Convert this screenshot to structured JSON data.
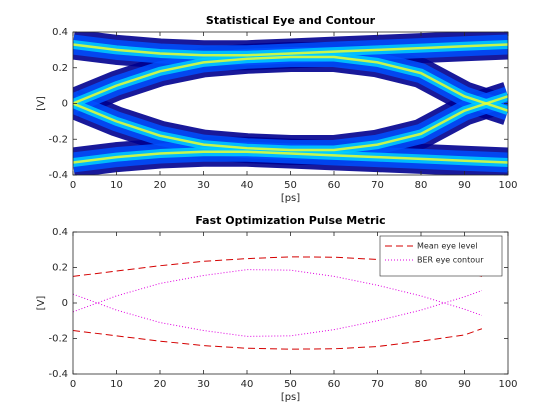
{
  "chart_data": [
    {
      "type": "eye",
      "title": "Statistical Eye and Contour",
      "xlabel": "[ps]",
      "ylabel": "[V]",
      "x": [
        0,
        10,
        20,
        30,
        40,
        50,
        60,
        70,
        80,
        90,
        100
      ],
      "colors": [
        "#00008f",
        "#0050ff",
        "#00d0ff",
        "#e8ff30"
      ],
      "series": [
        {
          "values": [
            0,
            0.1,
            0.18,
            0.23,
            0.25,
            0.26,
            0.26,
            0.23,
            0.17,
            0.04,
            -0.04
          ]
        },
        {
          "values": [
            0,
            -0.1,
            -0.18,
            -0.23,
            -0.25,
            -0.26,
            -0.26,
            -0.23,
            -0.17,
            -0.04,
            0.04
          ]
        },
        {
          "values": [
            0.33,
            0.3,
            0.28,
            0.27,
            0.27,
            0.28,
            0.29,
            0.3,
            0.31,
            0.32,
            0.33
          ]
        },
        {
          "values": [
            -0.33,
            -0.3,
            -0.28,
            -0.27,
            -0.27,
            -0.28,
            -0.29,
            -0.3,
            -0.31,
            -0.32,
            -0.33
          ]
        }
      ],
      "xlim": [
        0,
        100
      ],
      "xticks": [
        0,
        10,
        20,
        30,
        40,
        50,
        60,
        70,
        80,
        90,
        100
      ],
      "ylim": [
        -0.4,
        0.4
      ],
      "yticks": [
        -0.4,
        -0.2,
        0,
        0.2,
        0.4
      ]
    },
    {
      "type": "line",
      "title": "Fast Optimization Pulse Metric",
      "xlabel": "[ps]",
      "ylabel": "[V]",
      "x": [
        0,
        10,
        20,
        30,
        40,
        50,
        60,
        70,
        80,
        90,
        94
      ],
      "series": [
        {
          "name": "Mean eye level",
          "color": "#d40000",
          "dash": "7 4",
          "values": [
            [
              0.15,
              0.18,
              0.21,
              0.235,
              0.25,
              0.26,
              0.258,
              0.245,
              0.22,
              0.18,
              0.15
            ],
            [
              -0.155,
              -0.185,
              -0.215,
              -0.24,
              -0.255,
              -0.26,
              -0.258,
              -0.245,
              -0.215,
              -0.18,
              -0.145
            ]
          ]
        },
        {
          "name": "BER eye contour",
          "color": "#e000e0",
          "dash": "1 2",
          "values": [
            [
              -0.05,
              0.04,
              0.11,
              0.155,
              0.188,
              0.185,
              0.15,
              0.1,
              0.04,
              -0.035,
              -0.07
            ],
            [
              0.05,
              -0.04,
              -0.11,
              -0.155,
              -0.188,
              -0.185,
              -0.15,
              -0.1,
              -0.04,
              0.035,
              0.07
            ]
          ]
        }
      ],
      "legend": "upper right",
      "xlim": [
        0,
        100
      ],
      "xticks": [
        0,
        10,
        20,
        30,
        40,
        50,
        60,
        70,
        80,
        90,
        100
      ],
      "ylim": [
        -0.4,
        0.4
      ],
      "yticks": [
        -0.4,
        -0.2,
        0,
        0.2,
        0.4
      ]
    }
  ]
}
